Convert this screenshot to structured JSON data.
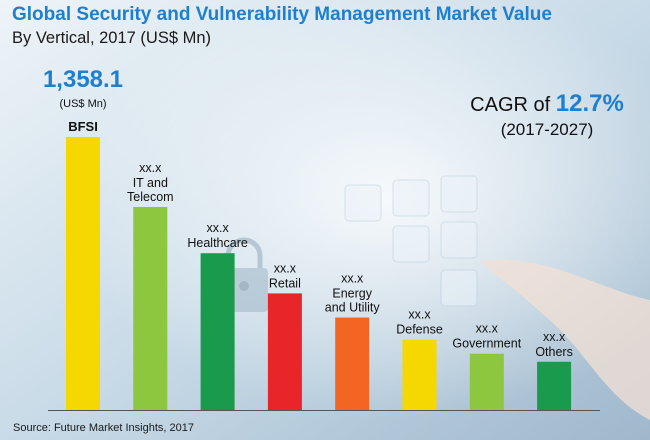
{
  "header": {
    "title": "Global Security and Vulnerability Management Market Value",
    "subtitle": "By Vertical, 2017 (US$ Mn)"
  },
  "callout": {
    "cagr_prefix": "CAGR of",
    "cagr_value": "12.7%",
    "cagr_period": "(2017-2027)"
  },
  "source": "Source: Future Market Insights, 2017",
  "chart_data": {
    "type": "bar",
    "title": "Global Security and Vulnerability Management Market Value",
    "subtitle": "By Vertical, 2017 (US$ Mn)",
    "categories": [
      "BFSI",
      "IT and Telecom",
      "Healthcare",
      "Retail",
      "Energy and Utility",
      "Defense",
      "Government",
      "Others"
    ],
    "category_lines": [
      [
        "BFSI"
      ],
      [
        "IT and",
        "Telecom"
      ],
      [
        "Healthcare"
      ],
      [
        "Retail"
      ],
      [
        "Energy",
        "and Utility"
      ],
      [
        "Defense"
      ],
      [
        "Government"
      ],
      [
        "Others"
      ]
    ],
    "values": [
      1358.1,
      1010,
      780,
      580,
      460,
      350,
      280,
      240
    ],
    "value_labels": [
      "1,358.1",
      "xx.x",
      "xx.x",
      "xx.x",
      "xx.x",
      "xx.x",
      "xx.x",
      "xx.x"
    ],
    "top_value_unit": "(US$ Mn)",
    "colors": [
      "#f5d800",
      "#8dc63f",
      "#1a9a4c",
      "#e8262a",
      "#f26522",
      "#f5d800",
      "#8dc63f",
      "#1a9a4c"
    ],
    "ylim": [
      0,
      1400
    ],
    "grid": false,
    "xlabel": "",
    "ylabel": ""
  }
}
